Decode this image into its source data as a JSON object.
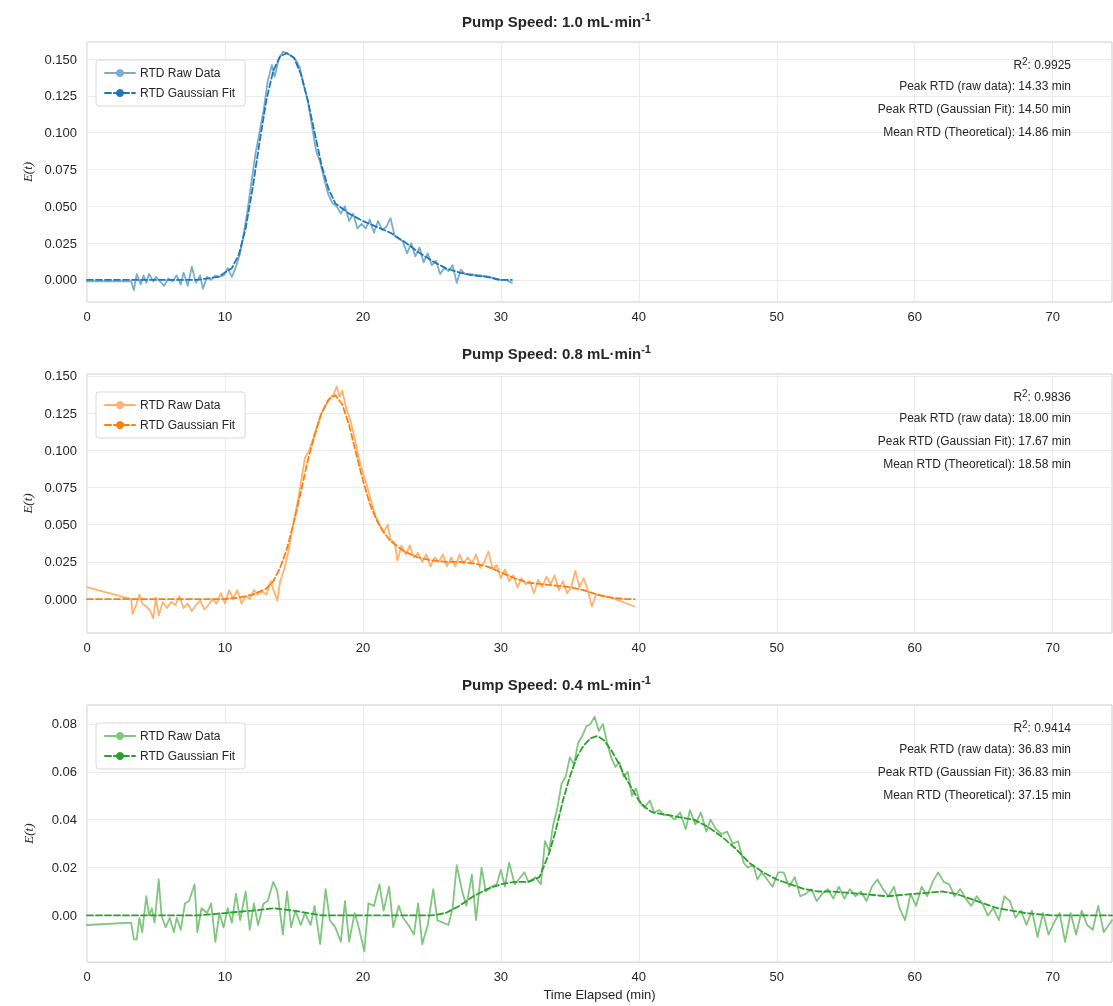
{
  "chart_data": [
    {
      "type": "line",
      "title": "Pump Speed: 1.0 mL·min$^{-1}$",
      "ylabel": "E(t)",
      "xlim": [
        0,
        74.3
      ],
      "xticks": [
        0,
        10,
        20,
        30,
        40,
        50,
        60,
        70
      ],
      "ylim": [
        -0.015,
        0.1616
      ],
      "yticks": [
        {
          "value": 0,
          "label": "0.000"
        },
        {
          "value": 0.025,
          "label": "0.025"
        },
        {
          "value": 0.05,
          "label": "0.050"
        },
        {
          "value": 0.075,
          "label": "0.075"
        },
        {
          "value": 0.1,
          "label": "0.100"
        },
        {
          "value": 0.125,
          "label": "0.125"
        },
        {
          "value": 0.15,
          "label": "0.150"
        }
      ],
      "grid": true,
      "legend": "top left",
      "marker": "none",
      "annotations": [
        "R$^{2}$: 0.9925",
        "Peak RTD (raw data): 14.33 min",
        "Peak RTD (Gaussian Fit): 14.50 min",
        "Mean RTD (Theoretical): 14.86 min"
      ],
      "series": [
        {
          "name": "RTD Raw Data",
          "color": "#79add2",
          "line_style": "solid",
          "x": [
            0,
            3.2,
            3.4,
            3.6,
            3.9,
            4.1,
            4.3,
            4.5,
            4.8,
            5.0,
            5.3,
            5.6,
            5.9,
            6.2,
            6.5,
            6.8,
            7.0,
            7.3,
            7.6,
            7.9,
            8.2,
            8.4,
            8.7,
            9.0,
            9.3,
            9.6,
            9.9,
            10.2,
            10.5,
            10.8,
            11.1,
            11.3,
            11.6,
            11.9,
            12.2,
            12.5,
            12.8,
            13.1,
            13.4,
            13.6,
            13.9,
            14.2,
            14.5,
            14.8,
            15.1,
            15.4,
            15.7,
            16.0,
            16.3,
            16.6,
            16.9,
            17.2,
            17.5,
            17.8,
            18.1,
            18.4,
            18.7,
            19.0,
            19.3,
            19.6,
            19.9,
            20.2,
            20.5,
            20.8,
            21.1,
            21.4,
            21.7,
            22.0,
            22.3,
            22.6,
            22.9,
            23.2,
            23.5,
            23.8,
            24.1,
            24.4,
            24.7,
            25.0,
            25.3,
            25.6,
            25.9,
            26.2,
            26.5,
            26.8,
            27.1,
            27.4,
            27.8,
            28.5,
            29.2,
            29.8,
            30.4,
            30.8
          ],
          "values": [
            -0.001,
            -0.001,
            -0.007,
            0.004,
            -0.003,
            0.003,
            -0.002,
            0.004,
            -0.001,
            0.002,
            -0.001,
            -0.004,
            0.001,
            -0.001,
            0.003,
            -0.003,
            0.005,
            -0.004,
            0.009,
            -0.002,
            0.003,
            -0.006,
            0.002,
            0.0,
            0.003,
            0.002,
            0.003,
            0.008,
            0.002,
            0.009,
            0.018,
            0.028,
            0.045,
            0.065,
            0.085,
            0.1,
            0.115,
            0.135,
            0.146,
            0.138,
            0.15,
            0.155,
            0.154,
            0.152,
            0.15,
            0.145,
            0.133,
            0.122,
            0.105,
            0.088,
            0.08,
            0.068,
            0.058,
            0.052,
            0.05,
            0.045,
            0.05,
            0.04,
            0.045,
            0.035,
            0.038,
            0.035,
            0.041,
            0.032,
            0.04,
            0.034,
            0.036,
            0.042,
            0.03,
            0.028,
            0.026,
            0.018,
            0.025,
            0.016,
            0.022,
            0.012,
            0.018,
            0.01,
            0.013,
            0.004,
            0.008,
            0.006,
            0.01,
            -0.002,
            0.007,
            0.004,
            0.004,
            0.003,
            0.002,
            0.0,
            0.0,
            -0.002
          ]
        },
        {
          "name": "RTD Gaussian Fit",
          "color": "#1f77b4",
          "line_style": "dashed",
          "x": [
            0,
            8,
            9.5,
            10.5,
            11,
            11.5,
            12,
            12.5,
            13,
            13.5,
            14,
            14.5,
            15,
            15.5,
            16,
            16.5,
            17,
            17.5,
            18,
            19,
            20,
            21,
            22,
            23,
            24,
            25,
            26,
            27,
            28,
            29,
            30,
            30.8
          ],
          "values": [
            0,
            0,
            0.002,
            0.008,
            0.017,
            0.035,
            0.062,
            0.093,
            0.122,
            0.142,
            0.152,
            0.154,
            0.151,
            0.14,
            0.122,
            0.1,
            0.078,
            0.062,
            0.052,
            0.045,
            0.04,
            0.036,
            0.032,
            0.026,
            0.019,
            0.013,
            0.008,
            0.005,
            0.003,
            0.002,
            0.0,
            0.0
          ]
        }
      ]
    },
    {
      "type": "line",
      "title": "Pump Speed: 0.8 mL·min$^{-1}$",
      "ylabel": "E(t)",
      "xlim": [
        0,
        74.3
      ],
      "xticks": [
        0,
        10,
        20,
        30,
        40,
        50,
        60,
        70
      ],
      "ylim": [
        -0.0228,
        0.1513
      ],
      "yticks": [
        {
          "value": 0,
          "label": "0.000"
        },
        {
          "value": 0.025,
          "label": "0.025"
        },
        {
          "value": 0.05,
          "label": "0.050"
        },
        {
          "value": 0.075,
          "label": "0.075"
        },
        {
          "value": 0.1,
          "label": "0.100"
        },
        {
          "value": 0.125,
          "label": "0.125"
        },
        {
          "value": 0.15,
          "label": "0.150"
        }
      ],
      "grid": true,
      "legend": "top left",
      "marker": "none",
      "annotations": [
        "R$^{2}$: 0.9836",
        "Peak RTD (raw data): 18.00 min",
        "Peak RTD (Gaussian Fit): 17.67 min",
        "Mean RTD (Theoretical): 18.58 min"
      ],
      "series": [
        {
          "name": "RTD Raw Data",
          "color": "#ffb26e",
          "line_style": "solid",
          "x": [
            0,
            3.2,
            3.3,
            3.6,
            3.8,
            4.0,
            4.3,
            4.6,
            4.8,
            5.0,
            5.2,
            5.5,
            5.8,
            6.1,
            6.4,
            6.7,
            7.0,
            7.3,
            7.6,
            7.9,
            8.2,
            8.5,
            8.8,
            9.1,
            9.4,
            9.7,
            10.0,
            10.3,
            10.6,
            10.9,
            11.2,
            11.5,
            11.8,
            12.1,
            12.4,
            12.7,
            13.0,
            13.3,
            13.6,
            13.8,
            14.0,
            14.3,
            14.6,
            14.9,
            15.2,
            15.5,
            15.8,
            16.1,
            16.4,
            16.7,
            17.0,
            17.3,
            17.6,
            17.9,
            18.1,
            18.3,
            18.5,
            18.8,
            19.1,
            19.4,
            19.7,
            20.0,
            20.3,
            20.6,
            20.9,
            21.2,
            21.5,
            21.8,
            22.0,
            22.3,
            22.5,
            22.8,
            23.1,
            23.4,
            23.7,
            24.0,
            24.3,
            24.6,
            24.9,
            25.2,
            25.5,
            25.8,
            26.1,
            26.4,
            26.7,
            27.0,
            27.3,
            27.6,
            27.9,
            28.2,
            28.5,
            28.8,
            29.1,
            29.4,
            29.7,
            30.0,
            30.3,
            30.6,
            30.9,
            31.2,
            31.5,
            31.8,
            32.1,
            32.4,
            32.7,
            33.0,
            33.3,
            33.6,
            33.9,
            34.2,
            34.5,
            34.8,
            35.1,
            35.4,
            35.7,
            36.0,
            36.3,
            36.6,
            36.9,
            38.0,
            39.7
          ],
          "values": [
            0.008,
            0.0,
            -0.01,
            -0.003,
            0.003,
            -0.003,
            -0.005,
            -0.008,
            -0.013,
            0.001,
            -0.011,
            -0.002,
            -0.006,
            -0.002,
            -0.004,
            0.002,
            -0.006,
            -0.003,
            -0.008,
            -0.004,
            -0.001,
            -0.007,
            -0.004,
            0.0,
            -0.003,
            0.004,
            -0.003,
            0.006,
            0.0,
            0.006,
            -0.003,
            0.002,
            0.0,
            0.006,
            0.003,
            0.005,
            0.003,
            0.012,
            0.004,
            -0.001,
            0.012,
            0.02,
            0.032,
            0.048,
            0.062,
            0.078,
            0.095,
            0.1,
            0.108,
            0.117,
            0.125,
            0.13,
            0.135,
            0.138,
            0.143,
            0.136,
            0.14,
            0.128,
            0.12,
            0.108,
            0.095,
            0.085,
            0.076,
            0.066,
            0.056,
            0.05,
            0.045,
            0.05,
            0.04,
            0.038,
            0.026,
            0.036,
            0.03,
            0.036,
            0.028,
            0.031,
            0.025,
            0.03,
            0.022,
            0.028,
            0.025,
            0.03,
            0.022,
            0.028,
            0.022,
            0.03,
            0.024,
            0.028,
            0.024,
            0.03,
            0.021,
            0.025,
            0.032,
            0.02,
            0.023,
            0.014,
            0.02,
            0.012,
            0.016,
            0.008,
            0.014,
            0.01,
            0.012,
            0.004,
            0.013,
            0.008,
            0.015,
            0.01,
            0.016,
            0.006,
            0.012,
            0.004,
            0.008,
            0.019,
            0.008,
            0.014,
            0.006,
            -0.005,
            0.003,
            0.001,
            -0.005
          ]
        },
        {
          "name": "RTD Gaussian Fit",
          "color": "#ff7f0e",
          "line_style": "dashed",
          "x": [
            0,
            10,
            11,
            12,
            13,
            13.5,
            14,
            14.5,
            15,
            15.5,
            16,
            16.5,
            17,
            17.5,
            18,
            18.5,
            19,
            19.5,
            20,
            20.5,
            21,
            21.5,
            22,
            23,
            24,
            25,
            26,
            27,
            28,
            29,
            30,
            31,
            32,
            33,
            34,
            35,
            36,
            37,
            38,
            39,
            39.7
          ],
          "values": [
            0,
            0,
            0.001,
            0.003,
            0.007,
            0.012,
            0.021,
            0.034,
            0.052,
            0.072,
            0.093,
            0.11,
            0.125,
            0.134,
            0.137,
            0.131,
            0.117,
            0.098,
            0.08,
            0.064,
            0.053,
            0.045,
            0.039,
            0.032,
            0.028,
            0.026,
            0.025,
            0.025,
            0.024,
            0.022,
            0.018,
            0.014,
            0.011,
            0.01,
            0.009,
            0.008,
            0.006,
            0.003,
            0.001,
            0.0,
            0.0
          ]
        }
      ]
    },
    {
      "type": "line",
      "title": "Pump Speed: 0.4 mL·min$^{-1}$",
      "xlabel": "Time Elapsed (min)",
      "ylabel": "E(t)",
      "xlim": [
        0,
        74.3
      ],
      "xticks": [
        0,
        10,
        20,
        30,
        40,
        50,
        60,
        70
      ],
      "ylim": [
        -0.0195,
        0.0879
      ],
      "yticks": [
        {
          "value": 0,
          "label": "0.00"
        },
        {
          "value": 0.02,
          "label": "0.02"
        },
        {
          "value": 0.04,
          "label": "0.04"
        },
        {
          "value": 0.06,
          "label": "0.06"
        },
        {
          "value": 0.08,
          "label": "0.08"
        }
      ],
      "grid": true,
      "legend": "top left",
      "marker": "none",
      "annotations": [
        "R$^{2}$: 0.9414",
        "Peak RTD (raw data): 36.83 min",
        "Peak RTD (Gaussian Fit): 36.83 min",
        "Mean RTD (Theoretical): 37.15 min"
      ],
      "series": [
        {
          "name": "RTD Raw Data",
          "color": "#80c680",
          "line_style": "solid",
          "x": [
            0,
            3.2,
            3.4,
            3.6,
            3.8,
            4.0,
            4.3,
            4.5,
            4.7,
            4.9,
            5.2,
            5.4,
            5.7,
            6.0,
            6.3,
            6.5,
            6.8,
            7.1,
            7.4,
            7.8,
            8.0,
            8.3,
            8.7,
            9.0,
            9.3,
            9.6,
            9.9,
            10.2,
            10.5,
            10.8,
            11.1,
            11.5,
            11.8,
            12.1,
            12.4,
            12.8,
            13.1,
            13.5,
            13.8,
            14.2,
            14.5,
            14.8,
            15.1,
            15.5,
            15.8,
            16.2,
            16.5,
            16.9,
            17.3,
            17.6,
            18.0,
            18.4,
            18.7,
            19.0,
            19.4,
            19.7,
            20.1,
            20.4,
            20.8,
            21.2,
            21.5,
            21.9,
            22.2,
            22.6,
            22.9,
            23.3,
            23.7,
            24.0,
            24.3,
            24.7,
            25.1,
            25.4,
            25.8,
            26.2,
            26.5,
            26.8,
            27.2,
            27.5,
            27.9,
            28.2,
            28.6,
            28.9,
            29.3,
            29.7,
            30.0,
            30.3,
            30.6,
            31.0,
            31.3,
            31.7,
            32.0,
            32.5,
            32.9,
            33.2,
            33.5,
            33.8,
            34.1,
            34.4,
            34.7,
            35.0,
            35.3,
            35.6,
            35.9,
            36.2,
            36.5,
            36.8,
            37.1,
            37.4,
            37.7,
            38.0,
            38.3,
            38.6,
            38.9,
            39.2,
            39.5,
            39.8,
            40.1,
            40.4,
            40.8,
            41.1,
            41.5,
            41.8,
            42.2,
            42.6,
            43.0,
            43.4,
            43.7,
            44.1,
            44.5,
            44.9,
            45.2,
            45.6,
            46.0,
            46.4,
            46.8,
            47.2,
            47.6,
            47.9,
            48.3,
            48.6,
            48.9,
            49.3,
            49.7,
            50.1,
            50.5,
            50.9,
            51.3,
            51.7,
            52.1,
            52.5,
            52.9,
            53.3,
            53.7,
            54.1,
            54.5,
            54.9,
            55.3,
            55.7,
            56.1,
            56.5,
            56.9,
            57.3,
            57.7,
            58.1,
            58.5,
            58.9,
            59.3,
            59.7,
            60.1,
            60.5,
            60.9,
            61.3,
            61.7,
            62.1,
            62.5,
            62.9,
            63.3,
            63.7,
            64.1,
            64.5,
            64.9,
            65.3,
            65.7,
            66.1,
            66.5,
            66.9,
            67.3,
            67.7,
            68.1,
            68.5,
            68.9,
            69.3,
            69.7,
            70.1,
            70.5,
            70.9,
            71.3,
            71.7,
            72.1,
            72.5,
            72.9,
            73.3,
            73.7,
            74.3
          ],
          "values": [
            -0.004,
            -0.003,
            -0.01,
            -0.01,
            -0.001,
            -0.007,
            0.008,
            0.0,
            0.003,
            -0.003,
            0.015,
            0.0,
            -0.005,
            -0.001,
            -0.007,
            -0.001,
            -0.006,
            0.005,
            0.006,
            0.013,
            -0.007,
            0.003,
            0.001,
            0.005,
            -0.011,
            0.001,
            -0.005,
            0.003,
            -0.003,
            0.009,
            -0.002,
            0.01,
            -0.006,
            0.005,
            -0.004,
            0.005,
            0.006,
            0.014,
            0.01,
            -0.008,
            0.01,
            -0.005,
            0.002,
            -0.004,
            0.001,
            -0.004,
            0.004,
            -0.012,
            0.011,
            -0.002,
            -0.005,
            -0.011,
            0.006,
            -0.011,
            0.001,
            -0.005,
            -0.015,
            0.005,
            0.004,
            0.013,
            0.002,
            0.012,
            -0.005,
            0.004,
            -0.001,
            -0.004,
            -0.008,
            0.005,
            -0.012,
            -0.004,
            0.011,
            -0.002,
            -0.003,
            -0.004,
            0.003,
            0.021,
            0.01,
            0.004,
            0.017,
            -0.002,
            0.02,
            0.01,
            0.012,
            0.013,
            0.019,
            0.012,
            0.022,
            0.013,
            0.015,
            0.018,
            0.014,
            0.016,
            0.013,
            0.031,
            0.027,
            0.038,
            0.045,
            0.055,
            0.058,
            0.066,
            0.063,
            0.072,
            0.075,
            0.079,
            0.08,
            0.083,
            0.077,
            0.08,
            0.072,
            0.066,
            0.062,
            0.064,
            0.058,
            0.06,
            0.05,
            0.053,
            0.047,
            0.045,
            0.048,
            0.043,
            0.044,
            0.042,
            0.042,
            0.04,
            0.043,
            0.036,
            0.044,
            0.038,
            0.043,
            0.035,
            0.04,
            0.036,
            0.034,
            0.035,
            0.03,
            0.031,
            0.022,
            0.02,
            0.021,
            0.015,
            0.018,
            0.015,
            0.012,
            0.018,
            0.018,
            0.012,
            0.016,
            0.008,
            0.009,
            0.011,
            0.006,
            0.009,
            0.011,
            0.007,
            0.012,
            0.007,
            0.011,
            0.008,
            0.01,
            0.006,
            0.012,
            0.015,
            0.011,
            0.008,
            0.012,
            0.003,
            -0.002,
            0.009,
            0.004,
            0.012,
            0.008,
            0.014,
            0.018,
            0.014,
            0.013,
            0.008,
            0.011,
            0.007,
            0.004,
            0.008,
            0.005,
            0.0,
            0.003,
            -0.002,
            0.008,
            0.006,
            -0.001,
            0.002,
            -0.004,
            0.002,
            -0.009,
            0.001,
            -0.008,
            -0.003,
            0.001,
            -0.011,
            0.001,
            -0.008,
            0.002,
            -0.004,
            -0.006,
            0.004,
            -0.007,
            -0.002
          ]
        },
        {
          "name": "RTD Gaussian Fit",
          "color": "#2ca02c",
          "line_style": "dashed",
          "x": [
            0,
            8,
            10,
            12,
            13.5,
            15,
            17,
            20,
            25,
            26,
            27,
            28,
            29,
            30,
            31,
            32,
            32.8,
            33.5,
            34,
            34.5,
            35,
            35.5,
            36,
            36.5,
            37,
            37.5,
            38,
            38.5,
            39,
            39.5,
            40,
            40.5,
            41,
            42,
            43,
            44,
            45,
            46,
            47,
            48,
            49,
            50,
            51,
            52,
            53,
            54,
            56,
            58,
            60,
            62,
            63,
            64,
            65,
            66,
            67,
            68,
            70,
            74.3
          ],
          "values": [
            0,
            0,
            0.001,
            0.002,
            0.003,
            0.002,
            0.0,
            0.0,
            0.0,
            0.001,
            0.004,
            0.008,
            0.011,
            0.013,
            0.014,
            0.014,
            0.016,
            0.026,
            0.036,
            0.048,
            0.058,
            0.066,
            0.071,
            0.074,
            0.075,
            0.073,
            0.069,
            0.064,
            0.058,
            0.053,
            0.048,
            0.045,
            0.043,
            0.042,
            0.041,
            0.04,
            0.037,
            0.033,
            0.028,
            0.022,
            0.018,
            0.015,
            0.013,
            0.011,
            0.01,
            0.01,
            0.009,
            0.008,
            0.009,
            0.01,
            0.009,
            0.007,
            0.005,
            0.003,
            0.002,
            0.001,
            0.0,
            0.0
          ]
        }
      ]
    }
  ]
}
